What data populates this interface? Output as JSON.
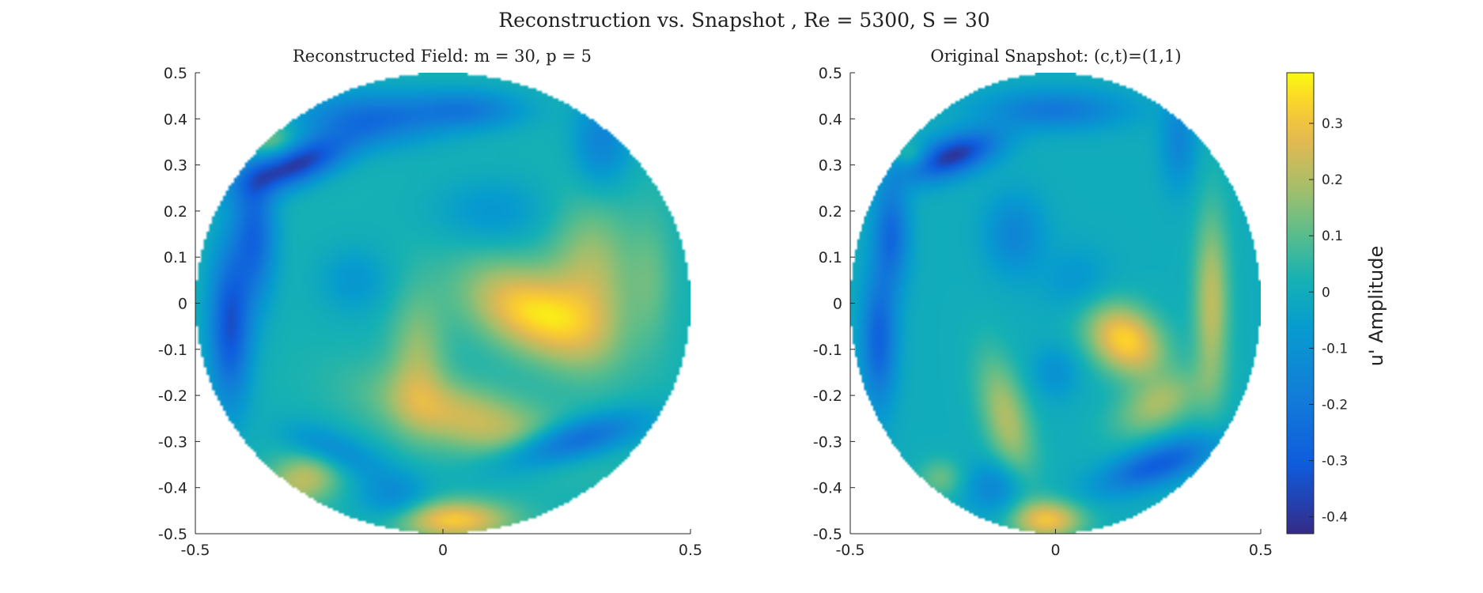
{
  "chart_data": {
    "figure_title": "Reconstruction vs. Snapshot , Re = 5300, S = 30",
    "type": "heatmap",
    "panels": [
      {
        "title": "Reconstructed Field: m = 30, p = 5",
        "xlim": [
          -0.5,
          0.5
        ],
        "ylim": [
          -0.5,
          0.5
        ],
        "xticks": [
          -0.5,
          0,
          0.5
        ],
        "xtick_labels": [
          "-0.5",
          "0",
          "0.5"
        ],
        "yticks": [
          0.5,
          0.4,
          0.3,
          0.2,
          0.1,
          0,
          -0.1,
          -0.2,
          -0.3,
          -0.4,
          -0.5
        ],
        "ytick_labels": [
          "0.5",
          "0.4",
          "0.3",
          "0.2",
          "0.1",
          "0",
          "-0.1",
          "-0.2",
          "-0.3",
          "-0.4",
          "-0.5"
        ],
        "domain": "disk",
        "radius": 0.5,
        "base_value": 0.02,
        "features": [
          {
            "x": 0.18,
            "y": -0.02,
            "sx": 0.1,
            "sy": 0.06,
            "a": 0.32,
            "rot": -0.5
          },
          {
            "x": 0.3,
            "y": 0.05,
            "sx": 0.06,
            "sy": 0.12,
            "a": 0.18,
            "rot": 0
          },
          {
            "x": 0.05,
            "y": -0.25,
            "sx": 0.14,
            "sy": 0.05,
            "a": 0.22,
            "rot": -0.3
          },
          {
            "x": -0.05,
            "y": -0.12,
            "sx": 0.04,
            "sy": 0.1,
            "a": 0.15,
            "rot": 0
          },
          {
            "x": 0.02,
            "y": -0.47,
            "sx": 0.08,
            "sy": 0.03,
            "a": 0.3,
            "rot": 0
          },
          {
            "x": -0.28,
            "y": -0.38,
            "sx": 0.06,
            "sy": 0.04,
            "a": 0.2,
            "rot": 0.5
          },
          {
            "x": -0.35,
            "y": 0.35,
            "sx": 0.04,
            "sy": 0.03,
            "a": 0.15,
            "rot": 0
          },
          {
            "x": 0.42,
            "y": 0.05,
            "sx": 0.03,
            "sy": 0.1,
            "a": 0.08,
            "rot": 0
          },
          {
            "x": -0.3,
            "y": 0.3,
            "sx": 0.08,
            "sy": 0.03,
            "a": -0.42,
            "rot": 0.4
          },
          {
            "x": -0.43,
            "y": -0.05,
            "sx": 0.03,
            "sy": 0.12,
            "a": -0.35,
            "rot": 0
          },
          {
            "x": -0.38,
            "y": 0.15,
            "sx": 0.03,
            "sy": 0.1,
            "a": -0.28,
            "rot": 0
          },
          {
            "x": -0.15,
            "y": 0.4,
            "sx": 0.1,
            "sy": 0.04,
            "a": -0.25,
            "rot": 0
          },
          {
            "x": 0.05,
            "y": 0.42,
            "sx": 0.08,
            "sy": 0.03,
            "a": -0.2,
            "rot": 0
          },
          {
            "x": 0.32,
            "y": 0.35,
            "sx": 0.04,
            "sy": 0.07,
            "a": -0.18,
            "rot": 0
          },
          {
            "x": 0.26,
            "y": -0.3,
            "sx": 0.1,
            "sy": 0.03,
            "a": -0.3,
            "rot": 0.3
          },
          {
            "x": -0.22,
            "y": -0.32,
            "sx": 0.07,
            "sy": 0.03,
            "a": -0.18,
            "rot": -0.4
          },
          {
            "x": -0.1,
            "y": -0.42,
            "sx": 0.05,
            "sy": 0.04,
            "a": -0.15,
            "rot": 0
          },
          {
            "x": -0.18,
            "y": 0.05,
            "sx": 0.05,
            "sy": 0.05,
            "a": -0.1,
            "rot": 0
          },
          {
            "x": 0.1,
            "y": 0.2,
            "sx": 0.08,
            "sy": 0.05,
            "a": -0.1,
            "rot": 0
          }
        ]
      },
      {
        "title": "Original Snapshot: (c,t)=(1,1)",
        "xlim": [
          -0.5,
          0.5
        ],
        "ylim": [
          -0.5,
          0.5
        ],
        "xticks": [
          -0.5,
          0,
          0.5
        ],
        "xtick_labels": [
          "-0.5",
          "0",
          "0.5"
        ],
        "yticks": [
          0.5,
          0.4,
          0.3,
          0.2,
          0.1,
          0,
          -0.1,
          -0.2,
          -0.3,
          -0.4,
          -0.5
        ],
        "ytick_labels": [
          "0.5",
          "0.4",
          "0.3",
          "0.2",
          "0.1",
          "0",
          "-0.1",
          "-0.2",
          "-0.3",
          "-0.4",
          "-0.5"
        ],
        "domain": "disk",
        "radius": 0.5,
        "base_value": 0.0,
        "features": [
          {
            "x": 0.17,
            "y": -0.08,
            "sx": 0.07,
            "sy": 0.05,
            "a": 0.34,
            "rot": -0.5
          },
          {
            "x": 0.38,
            "y": 0.0,
            "sx": 0.03,
            "sy": 0.14,
            "a": 0.22,
            "rot": 0
          },
          {
            "x": 0.25,
            "y": -0.22,
            "sx": 0.08,
            "sy": 0.04,
            "a": 0.18,
            "rot": 0.4
          },
          {
            "x": -0.12,
            "y": -0.25,
            "sx": 0.04,
            "sy": 0.1,
            "a": 0.2,
            "rot": 0.3
          },
          {
            "x": -0.02,
            "y": -0.47,
            "sx": 0.06,
            "sy": 0.03,
            "a": 0.3,
            "rot": 0
          },
          {
            "x": -0.35,
            "y": 0.32,
            "sx": 0.03,
            "sy": 0.02,
            "a": 0.12,
            "rot": 0
          },
          {
            "x": -0.28,
            "y": -0.38,
            "sx": 0.04,
            "sy": 0.03,
            "a": 0.12,
            "rot": 0
          },
          {
            "x": -0.25,
            "y": 0.32,
            "sx": 0.08,
            "sy": 0.03,
            "a": -0.4,
            "rot": 0.3
          },
          {
            "x": -0.43,
            "y": -0.08,
            "sx": 0.03,
            "sy": 0.1,
            "a": -0.28,
            "rot": 0
          },
          {
            "x": -0.4,
            "y": 0.15,
            "sx": 0.03,
            "sy": 0.08,
            "a": -0.25,
            "rot": 0
          },
          {
            "x": -0.1,
            "y": 0.15,
            "sx": 0.05,
            "sy": 0.06,
            "a": -0.15,
            "rot": 0
          },
          {
            "x": 0.0,
            "y": 0.42,
            "sx": 0.12,
            "sy": 0.03,
            "a": -0.2,
            "rot": 0
          },
          {
            "x": 0.3,
            "y": 0.35,
            "sx": 0.03,
            "sy": 0.07,
            "a": -0.15,
            "rot": 0
          },
          {
            "x": 0.25,
            "y": -0.35,
            "sx": 0.1,
            "sy": 0.03,
            "a": -0.3,
            "rot": 0.3
          },
          {
            "x": -0.15,
            "y": -0.4,
            "sx": 0.05,
            "sy": 0.04,
            "a": -0.15,
            "rot": 0
          },
          {
            "x": 0.0,
            "y": -0.15,
            "sx": 0.04,
            "sy": 0.04,
            "a": -0.1,
            "rot": 0
          },
          {
            "x": 0.05,
            "y": 0.05,
            "sx": 0.06,
            "sy": 0.05,
            "a": -0.08,
            "rot": 0
          }
        ]
      }
    ],
    "colorbar": {
      "label": "u' Amplitude",
      "colormap": "parula",
      "range": [
        -0.43,
        0.39
      ],
      "ticks": [
        0.3,
        0.2,
        0.1,
        0,
        -0.1,
        -0.2,
        -0.3,
        -0.4
      ],
      "tick_labels": [
        "0.3",
        "0.2",
        "0.1",
        "0",
        "-0.1",
        "-0.2",
        "-0.3",
        "-0.4"
      ]
    }
  }
}
